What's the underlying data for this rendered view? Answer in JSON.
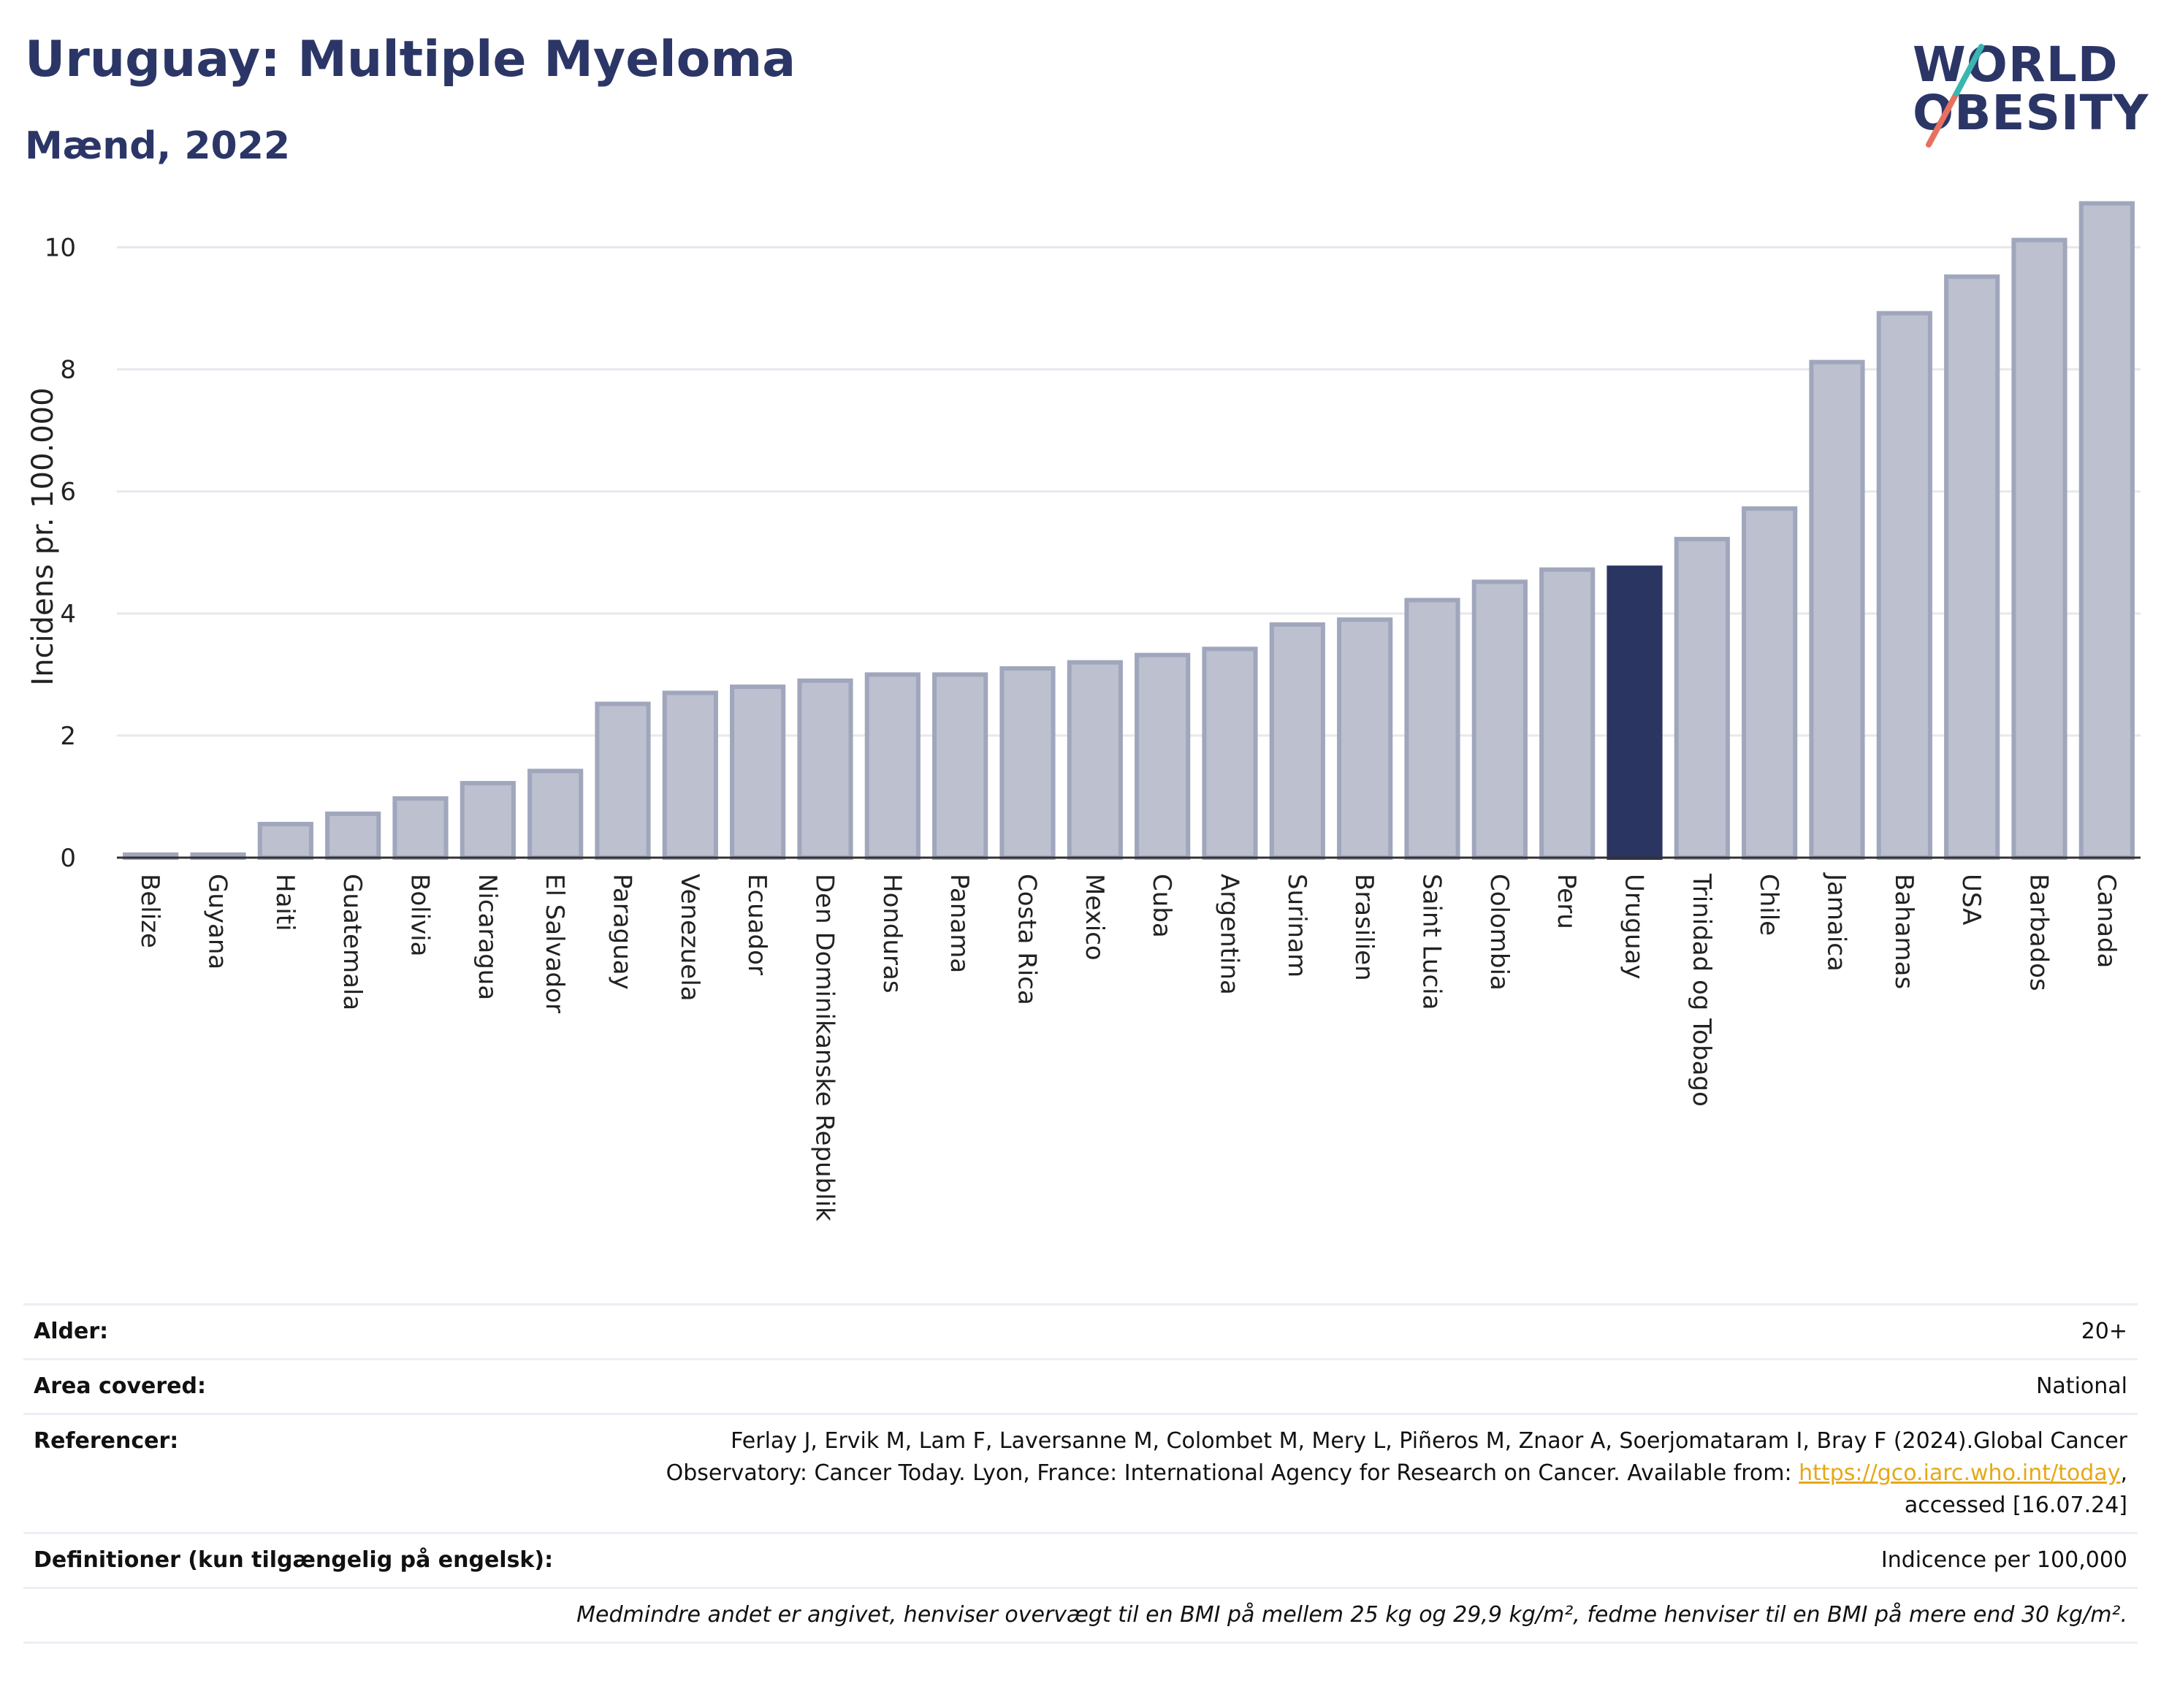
{
  "header": {
    "title": "Uruguay: Multiple Myeloma",
    "subtitle": "Mænd, 2022",
    "logo_line1": "WORLD",
    "logo_line2": "OBESITY"
  },
  "colors": {
    "bar": "#bcc0cf",
    "bar_stroke": "#a0a6bc",
    "highlight": "#2b3561",
    "grid": "#e6e8ee",
    "title": "#2b3667",
    "link": "#e6a817"
  },
  "chart_data": {
    "type": "bar",
    "title": "Uruguay: Multiple Myeloma",
    "subtitle": "Mænd, 2022",
    "xlabel": "",
    "ylabel": "Incidens pr. 100.000",
    "ylim": [
      0,
      11
    ],
    "yticks": [
      0,
      2,
      4,
      6,
      8,
      10
    ],
    "grid": true,
    "highlight": "Uruguay",
    "categories": [
      "Belize",
      "Guyana",
      "Haiti",
      "Guatemala",
      "Bolivia",
      "Nicaragua",
      "El Salvador",
      "Paraguay",
      "Venezuela",
      "Ecuador",
      "Den Dominikanske Republik",
      "Honduras",
      "Panama",
      "Costa Rica",
      "Mexico",
      "Cuba",
      "Argentina",
      "Surinam",
      "Brasilien",
      "Saint Lucia",
      "Colombia",
      "Peru",
      "Uruguay",
      "Trinidad og Tobago",
      "Chile",
      "Jamaica",
      "Bahamas",
      "USA",
      "Barbados",
      "Canada"
    ],
    "values": [
      0.05,
      0.05,
      0.55,
      0.72,
      0.97,
      1.22,
      1.42,
      2.52,
      2.7,
      2.8,
      2.9,
      3.0,
      3.0,
      3.1,
      3.2,
      3.32,
      3.42,
      3.82,
      3.9,
      4.22,
      4.52,
      4.72,
      4.75,
      5.22,
      5.72,
      8.12,
      8.92,
      9.52,
      10.12,
      10.72
    ]
  },
  "meta": {
    "age_label": "Alder:",
    "age_value": "20+",
    "area_label": "Area covered:",
    "area_value": "National",
    "ref_label": "Referencer:",
    "ref_line1": "Ferlay J, Ervik M, Lam F, Laversanne M, Colombet M, Mery L, Piñeros M, Znaor A, Soerjomataram I, Bray F (2024).Global Cancer",
    "ref_line2_pre": "Observatory: Cancer Today. Lyon, France: International Agency for Research on Cancer. Available from: ",
    "ref_link": "https://gco.iarc.who.int/today",
    "ref_line2_post": ",",
    "ref_line3": "accessed [16.07.24]",
    "def_label": "Definitioner (kun tilgængelig på engelsk):",
    "def_value": "Indicence per 100,000",
    "note": "Medmindre andet er angivet, henviser overvægt til en BMI på mellem 25 kg og 29,9 kg/m², fedme henviser til en BMI på mere end 30 kg/m²."
  }
}
